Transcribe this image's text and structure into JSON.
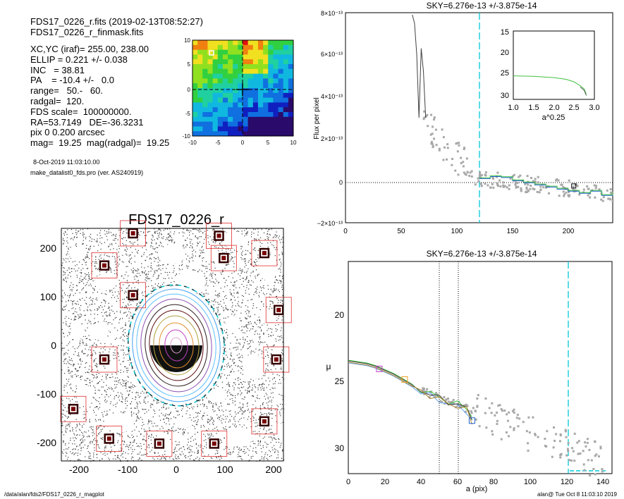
{
  "header": {
    "line1": "FDS17_0226_r.fits  (2019-02-13T08:52:27)",
    "line2": "FDS17_0226_r_finmask.fits"
  },
  "info_lines": [
    "XC,YC (iraf)=   255.00, 238.00",
    "ELLIP = 0.221 +/- 0.038",
    "INC   = 38.81",
    "PA    = -10.4 +/-   0.0",
    "range=   50.-   60.",
    "radgal=  120.",
    "FDS scale=  100000000.",
    "RA=53.7149   DE=-36.3231",
    "pix 0 0.200 arcsec",
    "mag=  19.25  mag(radgal)=  19.25"
  ],
  "date_line": "8-Oct-2019 11:03:10.00",
  "program_line": "make_datalist0_fds.pro (ver. AS240919)",
  "footer": {
    "path": "/data/alan/fds2/FDS17_0226_r_magplot",
    "user": "alan@  Tue Oct  8 11:03:10 2019"
  },
  "colors": {
    "cyan_dash": "#00c8d8",
    "mask_box": "#e03030",
    "points": "#a8a8a8",
    "profile": "#404040",
    "blue": "#1f5fd0",
    "green": "#40c040",
    "magenta": "#c040c0",
    "orange": "#f0a020"
  },
  "chart_data": [
    {
      "id": "thumbnail",
      "type": "heatmap",
      "title": "",
      "xlabel": "",
      "ylabel": "",
      "xlim": [
        -10,
        10
      ],
      "ylim": [
        -10,
        10
      ],
      "xticks": [
        "-10",
        "-5",
        "0",
        "5",
        "10"
      ],
      "yticks": [
        "10",
        "5",
        "0",
        "-5",
        "-10"
      ],
      "center": [
        0,
        0
      ]
    },
    {
      "id": "image",
      "type": "scatter",
      "title": "FDS17_0226_r",
      "xlabel": "",
      "ylabel": "",
      "xlim": [
        -240,
        225
      ],
      "ylim": [
        -235,
        235
      ],
      "xticks": [
        "-200",
        "-100",
        "0",
        "100",
        "200"
      ],
      "yticks": [
        "200",
        "100",
        "0",
        "-100",
        "-200"
      ],
      "ellipse": {
        "center": [
          0,
          0
        ],
        "semi_major": 120,
        "ellip": 0.221,
        "pa": -10.4
      },
      "masked_stars": [
        [
          -90,
          100
        ],
        [
          -150,
          -30
        ],
        [
          -215,
          -130
        ],
        [
          -140,
          -190
        ],
        [
          -35,
          -200
        ],
        [
          80,
          -200
        ],
        [
          100,
          175
        ],
        [
          185,
          -155
        ],
        [
          210,
          -30
        ],
        [
          215,
          70
        ],
        [
          185,
          185
        ],
        [
          -150,
          160
        ],
        [
          -90,
          225
        ],
        [
          90,
          220
        ]
      ]
    },
    {
      "id": "flux",
      "type": "line",
      "title": "SKY=6.276e-13 +/-3.875e-14",
      "xlabel": "",
      "ylabel": "Flux per pixel",
      "xlim": [
        0,
        240
      ],
      "ylim": [
        -2e-13,
        8e-13
      ],
      "xticks": [
        "0",
        "50",
        "100",
        "150",
        "200"
      ],
      "yticks": [
        "8×10⁻¹³",
        "6×10⁻¹³",
        "4×10⁻¹³",
        "2×10⁻¹³",
        "0",
        "−2×10⁻¹³"
      ],
      "vline": 120,
      "series": [
        {
          "x": [
            60,
            62,
            64,
            66,
            68,
            70,
            72
          ],
          "y": [
            7.9e-13,
            7.5e-13,
            6e-13,
            3e-13,
            6.3e-13,
            5.2e-13,
            3e-13
          ]
        },
        {
          "x": [
            120,
            130,
            140,
            150,
            160,
            170,
            180,
            190,
            200,
            210,
            220,
            230,
            240
          ],
          "y": [
            1e-14,
            2e-14,
            1.5e-14,
            0,
            -1e-14,
            -2e-14,
            -3e-14,
            -4e-14,
            -5e-14,
            -6e-14,
            -5e-14,
            -7e-14,
            -6e-14
          ]
        }
      ],
      "inset": {
        "xlabel": "a^0.25",
        "xlim": [
          1.0,
          3.0
        ],
        "ylim": [
          31,
          15
        ],
        "xticks": [
          "1.0",
          "1.5",
          "2.0",
          "2.5",
          "3.0"
        ],
        "yticks": [
          "15",
          "20",
          "25",
          "30"
        ],
        "x": [
          1.0,
          1.5,
          2.0,
          2.3,
          2.5,
          2.65,
          2.75,
          2.8
        ],
        "y": [
          25.5,
          25.6,
          25.9,
          26.3,
          26.9,
          27.8,
          28.6,
          29.8
        ]
      }
    },
    {
      "id": "profile",
      "type": "line",
      "title": "SKY=6.276e-13 +/-3.875e-14",
      "xlabel": "a (pix)",
      "ylabel": "μ",
      "xlim": [
        0,
        145
      ],
      "ylim": [
        32,
        16
      ],
      "xticks": [
        "0",
        "20",
        "40",
        "60",
        "80",
        "100",
        "120",
        "140"
      ],
      "yticks": [
        "20",
        "25",
        "30"
      ],
      "vlines_dotted": [
        50,
        60
      ],
      "vline_dashed": 120,
      "series": [
        {
          "x": [
            0,
            5,
            10,
            15,
            20,
            25,
            30,
            35,
            40,
            45,
            50,
            55,
            60,
            65,
            68
          ],
          "y": [
            23.5,
            23.6,
            23.7,
            23.9,
            24.2,
            24.5,
            24.9,
            25.3,
            25.7,
            26.0,
            26.3,
            26.6,
            26.8,
            27.1,
            28.0
          ]
        }
      ],
      "markers": [
        [
          17,
          24.1
        ],
        [
          31,
          24.9
        ],
        [
          68,
          28.0
        ]
      ]
    }
  ]
}
